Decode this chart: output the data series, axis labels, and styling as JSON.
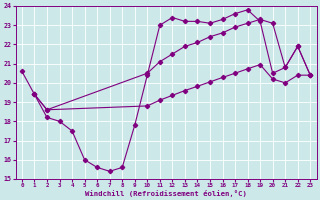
{
  "xlabel": "Windchill (Refroidissement éolien,°C)",
  "bg_color": "#cce8e8",
  "line_color": "#800080",
  "grid_color": "#ffffff",
  "xlim": [
    -0.5,
    23.5
  ],
  "ylim": [
    15,
    24
  ],
  "xticks": [
    0,
    1,
    2,
    3,
    4,
    5,
    6,
    7,
    8,
    9,
    10,
    11,
    12,
    13,
    14,
    15,
    16,
    17,
    18,
    19,
    20,
    21,
    22,
    23
  ],
  "yticks": [
    15,
    16,
    17,
    18,
    19,
    20,
    21,
    22,
    23,
    24
  ],
  "curve1_x": [
    0,
    1,
    2,
    3,
    4,
    5,
    6,
    7,
    8,
    9,
    10,
    11,
    12,
    13,
    14,
    15,
    16,
    17,
    18,
    19,
    20,
    21,
    22,
    23
  ],
  "curve1_y": [
    20.6,
    19.4,
    18.2,
    18.0,
    17.5,
    16.0,
    15.6,
    15.4,
    15.6,
    17.8,
    20.4,
    23.0,
    23.4,
    23.2,
    23.2,
    23.1,
    23.3,
    23.6,
    23.8,
    23.2,
    20.5,
    20.8,
    21.9,
    20.4
  ],
  "curve2_x": [
    1,
    2,
    10,
    11,
    12,
    13,
    14,
    15,
    16,
    17,
    18,
    19,
    20,
    21,
    22,
    23
  ],
  "curve2_y": [
    19.4,
    18.6,
    20.5,
    21.1,
    21.5,
    21.9,
    22.1,
    22.4,
    22.6,
    22.9,
    23.1,
    23.3,
    23.1,
    20.8,
    21.9,
    20.4
  ],
  "curve3_x": [
    1,
    2,
    10,
    11,
    12,
    13,
    14,
    15,
    16,
    17,
    18,
    19,
    20,
    21,
    22,
    23
  ],
  "curve3_y": [
    19.4,
    18.6,
    18.8,
    19.1,
    19.35,
    19.6,
    19.82,
    20.05,
    20.28,
    20.5,
    20.73,
    20.95,
    20.2,
    20.0,
    20.4,
    20.4
  ]
}
